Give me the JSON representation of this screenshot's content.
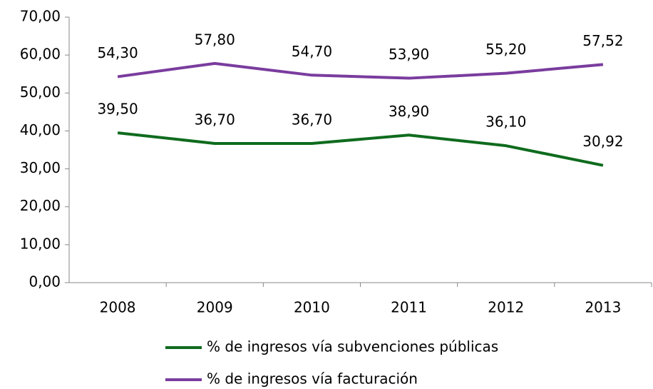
{
  "chart_data": {
    "type": "line",
    "categories": [
      "2008",
      "2009",
      "2010",
      "2011",
      "2012",
      "2013"
    ],
    "series": [
      {
        "name": "% de ingresos vía subvenciones públicas",
        "color": "#0f6b1e",
        "values": [
          39.5,
          36.7,
          36.7,
          38.9,
          36.1,
          30.92
        ],
        "value_labels": [
          "39,50",
          "36,70",
          "36,70",
          "38,90",
          "36,10",
          "30,92"
        ]
      },
      {
        "name": "% de ingresos vía facturación",
        "color": "#7a3c9e",
        "values": [
          54.3,
          57.8,
          54.7,
          53.9,
          55.2,
          57.52
        ],
        "value_labels": [
          "54,30",
          "57,80",
          "54,70",
          "53,90",
          "55,20",
          "57,52"
        ]
      }
    ],
    "ylim": [
      0,
      70
    ],
    "yticks": [
      {
        "value": 0,
        "label": "0,00"
      },
      {
        "value": 10,
        "label": "10,00"
      },
      {
        "value": 20,
        "label": "20,00"
      },
      {
        "value": 30,
        "label": "30,00"
      },
      {
        "value": 40,
        "label": "40,00"
      },
      {
        "value": 50,
        "label": "50,00"
      },
      {
        "value": 60,
        "label": "60,00"
      },
      {
        "value": 70,
        "label": "70,00"
      }
    ],
    "grid": false,
    "legend": "bottom"
  }
}
